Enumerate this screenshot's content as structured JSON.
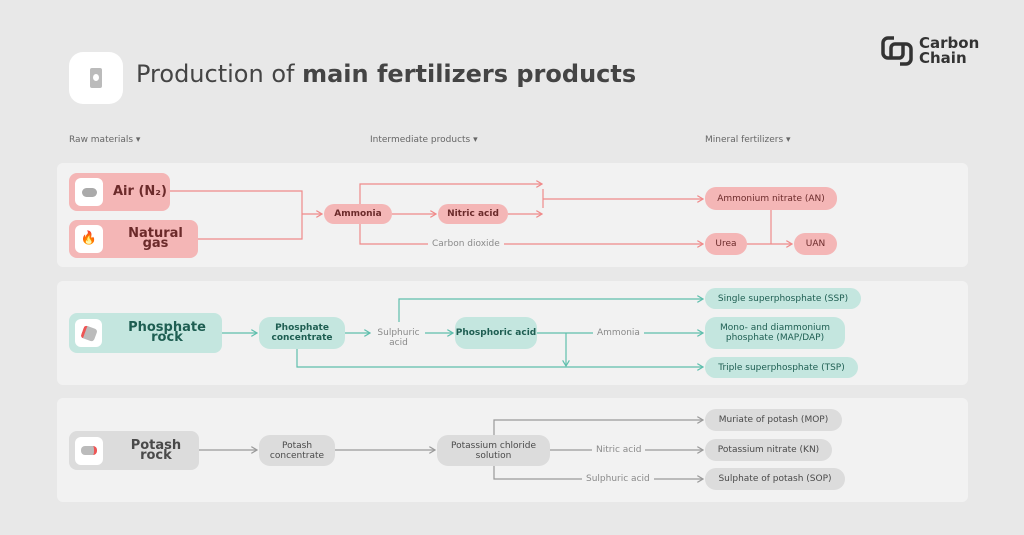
{
  "header": {
    "title_light": "Production of ",
    "title_bold": "main fertilizers products",
    "logo_line1": "Carbon",
    "logo_line2": "Chain"
  },
  "columns": [
    "Raw materials ▾",
    "Intermediate products ▾",
    "Mineral fertilizers ▾"
  ],
  "colors": {
    "nitrogen": "#f4b6b6",
    "nitrogen_line": "#f08a8a",
    "phosphate": "#c4e6df",
    "phosphate_line": "#5fbfad",
    "potash": "#dcdcdc",
    "potash_line": "#9a9a9a"
  },
  "nitrogen": {
    "air": "Air (N₂)",
    "gas": "Natural gas",
    "ammonia": "Ammonia",
    "nitric": "Nitric acid",
    "co2": "Carbon dioxide",
    "an": "Ammonium nitrate (AN)",
    "urea": "Urea",
    "uan": "UAN"
  },
  "phosphate": {
    "rock": "Phosphate rock",
    "conc": "Phosphate concentrate",
    "sulph": "Sulphuric acid",
    "phosphoric": "Phosphoric acid",
    "ammonia": "Ammonia",
    "ssp": "Single superphosphate (SSP)",
    "map": "Mono- and diammonium phosphate (MAP/DAP)",
    "tsp": "Triple superphosphate (TSP)"
  },
  "potash": {
    "rock": "Potash rock",
    "conc": "Potash concentrate",
    "kcl": "Potassium chloride solution",
    "nitric": "Nitric acid",
    "sulph": "Sulphuric acid",
    "mop": "Muriate of potash (MOP)",
    "kn": "Potassium nitrate (KN)",
    "sop": "Sulphate of potash (SOP)"
  }
}
